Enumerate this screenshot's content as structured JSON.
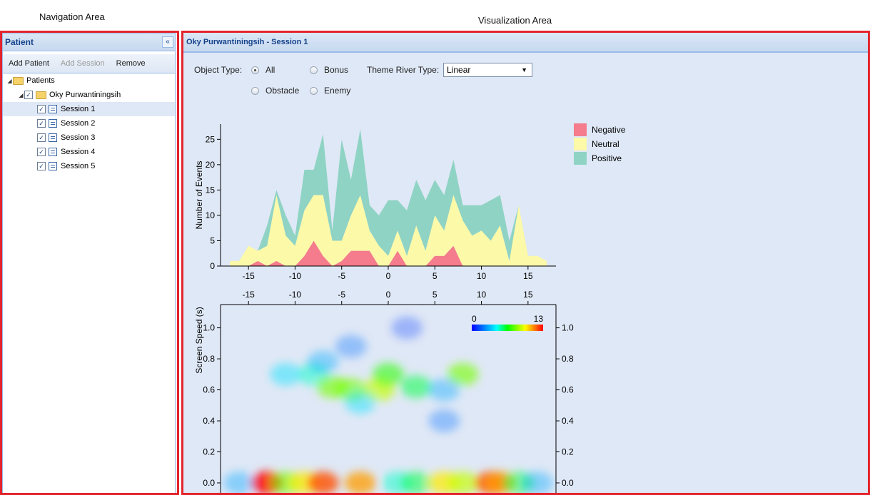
{
  "labels": {
    "navigation_area": "Navigation Area",
    "visualization_area": "Visualization Area"
  },
  "nav": {
    "title": "Patient",
    "toolbar": {
      "add_patient": "Add Patient",
      "add_session": "Add Session",
      "remove": "Remove"
    },
    "tree": {
      "root": "Patients",
      "patient": "Oky Purwantiningsih",
      "sessions": [
        "Session 1",
        "Session 2",
        "Session 3",
        "Session 4",
        "Session 5"
      ]
    }
  },
  "viz": {
    "title": "Oky Purwantiningsih - Session 1",
    "object_type_label": "Object Type:",
    "options": [
      "All",
      "Bonus",
      "Obstacle",
      "Enemy"
    ],
    "selected_option": "All",
    "theme_river_label": "Theme River Type:",
    "theme_river_value": "Linear"
  },
  "colors": {
    "negative": "#f47c8c",
    "neutral": "#fcf9a9",
    "positive": "#8fd3c4",
    "border_red": "#e4232c",
    "panel_bg": "#dfe8f6"
  },
  "chart_data": [
    {
      "type": "area",
      "ylabel": "Number of Events",
      "xlabel": "",
      "xlim": [
        -18,
        18
      ],
      "ylim": [
        0,
        28
      ],
      "xticks": [
        -15,
        -10,
        -5,
        0,
        5,
        10,
        15
      ],
      "yticks": [
        0,
        5,
        10,
        15,
        20,
        25
      ],
      "legend_position": "right",
      "x": [
        -17,
        -16,
        -15,
        -14,
        -13,
        -12,
        -11,
        -10,
        -9,
        -8,
        -7,
        -6,
        -5,
        -4,
        -3,
        -2,
        -1,
        0,
        1,
        2,
        3,
        4,
        5,
        6,
        7,
        8,
        9,
        10,
        11,
        12,
        13,
        14,
        15,
        16,
        17
      ],
      "series": [
        {
          "name": "Negative",
          "values": [
            0,
            0,
            0,
            1,
            0,
            1,
            0,
            0,
            2,
            5,
            2,
            0,
            1,
            3,
            3,
            3,
            0,
            0,
            3,
            0,
            0,
            0,
            2,
            2,
            4,
            0,
            0,
            0,
            0,
            0,
            0,
            0,
            0,
            0,
            0
          ]
        },
        {
          "name": "Neutral",
          "values": [
            1,
            1,
            4,
            2,
            4,
            13,
            6,
            4,
            9,
            9,
            12,
            5,
            4,
            7,
            11,
            4,
            4,
            2,
            4,
            2,
            8,
            3,
            8,
            5,
            10,
            9,
            6,
            7,
            5,
            8,
            1,
            12,
            2,
            2,
            1
          ]
        },
        {
          "name": "Positive",
          "values": [
            0,
            0,
            0,
            0,
            4,
            1,
            4,
            2,
            8,
            5,
            12,
            2,
            20,
            7,
            13,
            5,
            6,
            11,
            6,
            9,
            9,
            10,
            7,
            7,
            7,
            3,
            6,
            5,
            8,
            6,
            4,
            0,
            0,
            0,
            0
          ]
        }
      ]
    },
    {
      "type": "heatmap",
      "ylabel": "Screen Speed (s)",
      "xlim": [
        -18,
        18
      ],
      "ylim": [
        0,
        1.15
      ],
      "xticks": [
        -15,
        -10,
        -5,
        0,
        5,
        10,
        15
      ],
      "yticks": [
        0.0,
        0.2,
        0.4,
        0.6,
        0.8,
        1.0
      ],
      "colorbar": {
        "min": 0,
        "max": 13
      },
      "points": [
        {
          "x": -13,
          "y": 0.0,
          "v": 13
        },
        {
          "x": -11,
          "y": 0.0,
          "v": 8
        },
        {
          "x": -9,
          "y": 0.0,
          "v": 10
        },
        {
          "x": -7,
          "y": 0.0,
          "v": 12
        },
        {
          "x": -3,
          "y": 0.0,
          "v": 11
        },
        {
          "x": 1,
          "y": 0.0,
          "v": 5
        },
        {
          "x": 3,
          "y": 0.0,
          "v": 6
        },
        {
          "x": 6,
          "y": 0.0,
          "v": 10
        },
        {
          "x": 8,
          "y": 0.0,
          "v": 9
        },
        {
          "x": 11,
          "y": 0.0,
          "v": 12
        },
        {
          "x": 12,
          "y": 0.0,
          "v": 11
        },
        {
          "x": 14,
          "y": 0.0,
          "v": 6
        },
        {
          "x": -16,
          "y": 0.0,
          "v": 3
        },
        {
          "x": 16,
          "y": 0.0,
          "v": 3
        },
        {
          "x": -11,
          "y": 0.7,
          "v": 4
        },
        {
          "x": -8,
          "y": 0.7,
          "v": 5
        },
        {
          "x": -6,
          "y": 0.62,
          "v": 8
        },
        {
          "x": -4,
          "y": 0.6,
          "v": 8
        },
        {
          "x": -1,
          "y": 0.6,
          "v": 9
        },
        {
          "x": 0,
          "y": 0.7,
          "v": 7
        },
        {
          "x": 3,
          "y": 0.62,
          "v": 6
        },
        {
          "x": 8,
          "y": 0.7,
          "v": 8
        },
        {
          "x": 6,
          "y": 0.6,
          "v": 3
        },
        {
          "x": -3,
          "y": 0.52,
          "v": 4
        },
        {
          "x": 2,
          "y": 1.0,
          "v": 1
        },
        {
          "x": 6,
          "y": 0.4,
          "v": 2
        },
        {
          "x": -7,
          "y": 0.78,
          "v": 3
        },
        {
          "x": -4,
          "y": 0.88,
          "v": 2
        }
      ]
    }
  ]
}
